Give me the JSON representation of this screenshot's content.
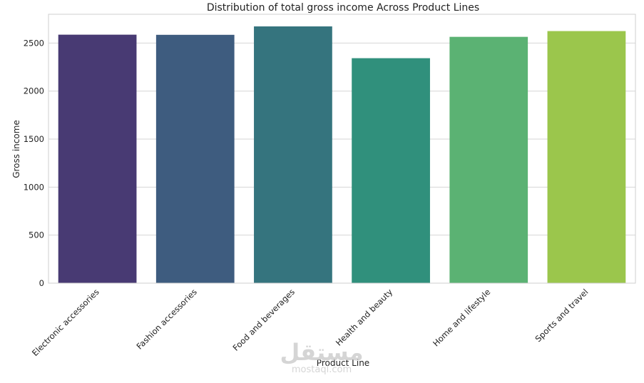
{
  "chart_data": {
    "type": "bar",
    "title": "Distribution of total gross income Across Product Lines",
    "xlabel": "Product Line",
    "ylabel": "Gross income",
    "categories": [
      "Electronic accessories",
      "Fashion accessories",
      "Food and beverages",
      "Health and beauty",
      "Home and lifestyle",
      "Sports and travel"
    ],
    "values": [
      2587.5,
      2586.0,
      2673.6,
      2342.6,
      2564.9,
      2624.9
    ],
    "colors": [
      "#483a73",
      "#3e5c7f",
      "#35747e",
      "#30907c",
      "#5bb273",
      "#9bc64c"
    ],
    "ylim": [
      0,
      2800
    ],
    "yticks": [
      0,
      500,
      1000,
      1500,
      2000,
      2500
    ],
    "grid": true,
    "legend": "none"
  },
  "watermark": {
    "arabic": "مستقل",
    "latin": "mostaql.com"
  }
}
